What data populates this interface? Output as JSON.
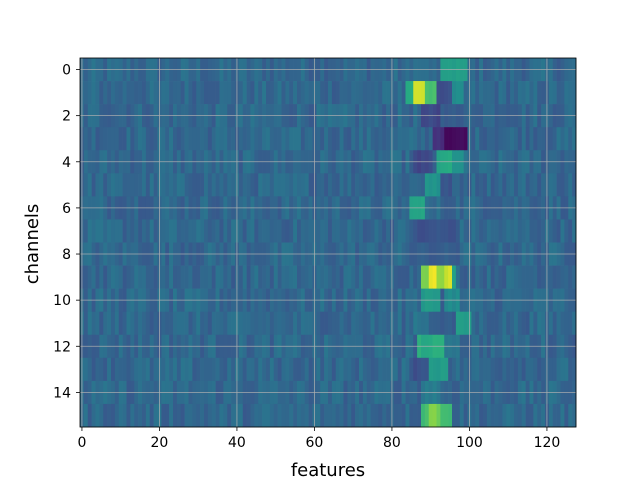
{
  "chart_data": {
    "type": "heatmap",
    "xlabel": "features",
    "ylabel": "channels",
    "xlim": [
      -0.5,
      127.5
    ],
    "ylim": [
      15.5,
      -0.5
    ],
    "rows": 16,
    "cols": 128,
    "x_ticks": [
      0,
      20,
      40,
      60,
      80,
      100,
      120
    ],
    "x_tick_labels": [
      "0",
      "20",
      "40",
      "60",
      "80",
      "100",
      "120"
    ],
    "y_ticks": [
      0,
      2,
      4,
      6,
      8,
      10,
      12,
      14
    ],
    "y_tick_labels": [
      "0",
      "2",
      "4",
      "6",
      "8",
      "10",
      "12",
      "14"
    ],
    "grid": true,
    "colormap": "viridis",
    "value_range": [
      0,
      1
    ],
    "background_value": 0.34,
    "hotspots": [
      {
        "row": 0,
        "col_start": 84,
        "col_end": 90,
        "value": 0.36
      },
      {
        "row": 0,
        "col_start": 93,
        "col_end": 99,
        "value": 0.55
      },
      {
        "row": 1,
        "col_start": 84,
        "col_end": 85,
        "value": 0.62
      },
      {
        "row": 1,
        "col_start": 86,
        "col_end": 88,
        "value": 0.95
      },
      {
        "row": 1,
        "col_start": 89,
        "col_end": 91,
        "value": 0.7
      },
      {
        "row": 1,
        "col_start": 92,
        "col_end": 95,
        "value": 0.25
      },
      {
        "row": 1,
        "col_start": 96,
        "col_end": 98,
        "value": 0.5
      },
      {
        "row": 2,
        "col_start": 88,
        "col_end": 92,
        "value": 0.22
      },
      {
        "row": 2,
        "col_start": 94,
        "col_end": 99,
        "value": 0.3
      },
      {
        "row": 3,
        "col_start": 91,
        "col_end": 93,
        "value": 0.15
      },
      {
        "row": 3,
        "col_start": 94,
        "col_end": 99,
        "value": 0.02
      },
      {
        "row": 4,
        "col_start": 86,
        "col_end": 90,
        "value": 0.22
      },
      {
        "row": 4,
        "col_start": 92,
        "col_end": 95,
        "value": 0.6
      },
      {
        "row": 4,
        "col_start": 96,
        "col_end": 98,
        "value": 0.5
      },
      {
        "row": 5,
        "col_start": 89,
        "col_end": 92,
        "value": 0.52
      },
      {
        "row": 5,
        "col_start": 93,
        "col_end": 95,
        "value": 0.26
      },
      {
        "row": 6,
        "col_start": 85,
        "col_end": 88,
        "value": 0.58
      },
      {
        "row": 6,
        "col_start": 94,
        "col_end": 96,
        "value": 0.28
      },
      {
        "row": 7,
        "col_start": 86,
        "col_end": 96,
        "value": 0.26
      },
      {
        "row": 8,
        "col_start": 85,
        "col_end": 97,
        "value": 0.3
      },
      {
        "row": 9,
        "col_start": 88,
        "col_end": 89,
        "value": 0.78
      },
      {
        "row": 9,
        "col_start": 90,
        "col_end": 91,
        "value": 0.97
      },
      {
        "row": 9,
        "col_start": 92,
        "col_end": 93,
        "value": 0.86
      },
      {
        "row": 9,
        "col_start": 94,
        "col_end": 95,
        "value": 0.94
      },
      {
        "row": 9,
        "col_start": 96,
        "col_end": 96,
        "value": 0.55
      },
      {
        "row": 10,
        "col_start": 88,
        "col_end": 92,
        "value": 0.55
      },
      {
        "row": 10,
        "col_start": 94,
        "col_end": 97,
        "value": 0.48
      },
      {
        "row": 11,
        "col_start": 86,
        "col_end": 89,
        "value": 0.4
      },
      {
        "row": 11,
        "col_start": 93,
        "col_end": 96,
        "value": 0.3
      },
      {
        "row": 11,
        "col_start": 97,
        "col_end": 100,
        "value": 0.55
      },
      {
        "row": 12,
        "col_start": 87,
        "col_end": 93,
        "value": 0.62
      },
      {
        "row": 12,
        "col_start": 94,
        "col_end": 97,
        "value": 0.4
      },
      {
        "row": 13,
        "col_start": 86,
        "col_end": 89,
        "value": 0.25
      },
      {
        "row": 13,
        "col_start": 90,
        "col_end": 94,
        "value": 0.55
      },
      {
        "row": 14,
        "col_start": 88,
        "col_end": 92,
        "value": 0.42
      },
      {
        "row": 15,
        "col_start": 88,
        "col_end": 89,
        "value": 0.7
      },
      {
        "row": 15,
        "col_start": 90,
        "col_end": 92,
        "value": 0.8
      },
      {
        "row": 15,
        "col_start": 93,
        "col_end": 95,
        "value": 0.68
      }
    ]
  }
}
